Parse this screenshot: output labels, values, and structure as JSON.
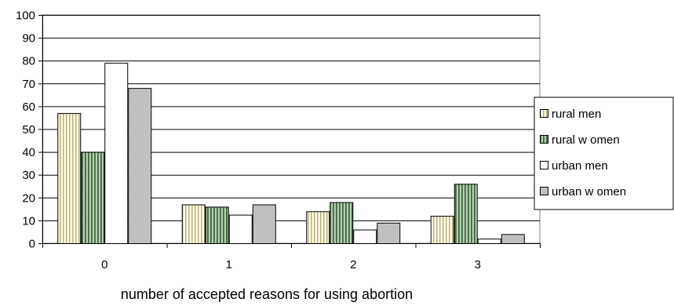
{
  "chart_data": {
    "type": "bar",
    "title": "",
    "xlabel": "number of accepted reasons for using abortion",
    "ylabel": "",
    "categories": [
      "0",
      "1",
      "2",
      "3"
    ],
    "ylim": [
      0,
      100
    ],
    "yticks": [
      "0",
      "10",
      "20",
      "30",
      "40",
      "50",
      "60",
      "70",
      "80",
      "90",
      "100"
    ],
    "grid": true,
    "legend_position": "right",
    "series": [
      {
        "name": "rural men",
        "values": [
          57,
          17,
          14,
          12
        ],
        "fill": "#fffbea",
        "pattern": "vertical-stripes",
        "stripe_color": "#b8b27a"
      },
      {
        "name": "rural w omen",
        "values": [
          40,
          16,
          18,
          26
        ],
        "fill": "#b8cdb4",
        "pattern": "vertical-stripes",
        "stripe_color": "#3f6a3f"
      },
      {
        "name": "urban men",
        "values": [
          79,
          12.5,
          6,
          2
        ],
        "fill": "#ffffff",
        "pattern": "none"
      },
      {
        "name": "urban w omen",
        "values": [
          68,
          17,
          9,
          4
        ],
        "fill": "#c0c0c0",
        "pattern": "none"
      }
    ]
  }
}
